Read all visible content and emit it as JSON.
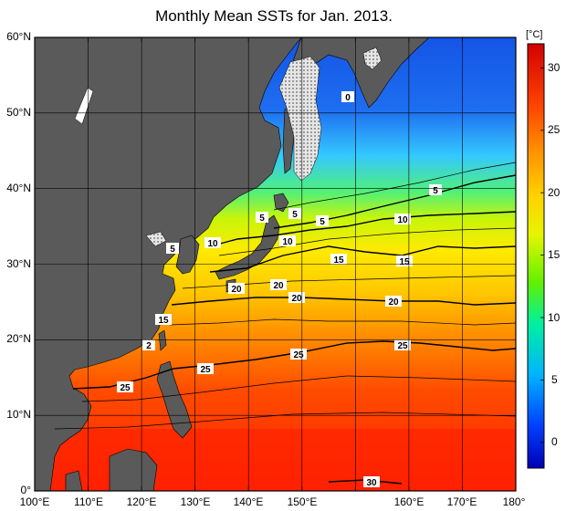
{
  "title": "Monthly Mean SSTs for Jan. 2013.",
  "map": {
    "lat_labels": [
      "60°N",
      "50°N",
      "40°N",
      "30°N",
      "20°N",
      "10°N",
      "0°"
    ],
    "lon_labels": [
      "100°E",
      "110°E",
      "120°E",
      "130°E",
      "140°E",
      "150°E",
      "160°E",
      "170°E",
      "180°"
    ],
    "contour_labels": [
      "0",
      "5",
      "5",
      "5",
      "5",
      "5",
      "10",
      "10",
      "10",
      "15",
      "15",
      "15",
      "2",
      "20",
      "20",
      "20",
      "20",
      "25",
      "25",
      "25",
      "25",
      "30"
    ]
  },
  "colorbar": {
    "unit": "[°C]",
    "ticks": [
      "30",
      "25",
      "20",
      "15",
      "10",
      "5",
      "0"
    ],
    "range": [
      -2,
      32
    ]
  },
  "colors": {
    "land": "#595959",
    "ice": "#d8d8d8",
    "sst_stops": [
      "#0000b4",
      "#0050ff",
      "#00d2ff",
      "#00e68c",
      "#a0f000",
      "#ffff3c",
      "#ffc800",
      "#ff6400",
      "#ff1e00",
      "#d20000"
    ]
  }
}
